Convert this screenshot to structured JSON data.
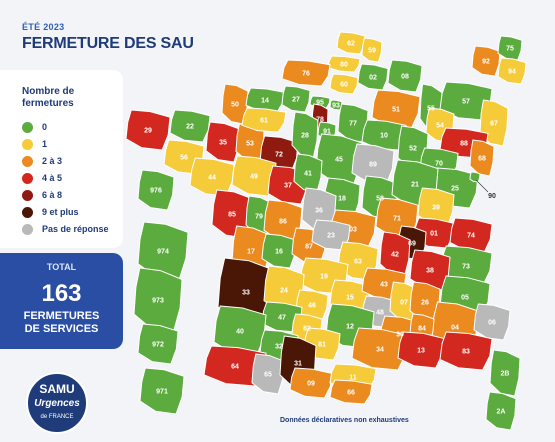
{
  "header": {
    "kicker": "ÉTÉ 2023",
    "title": "FERMETURE DES SAU"
  },
  "legend": {
    "title": "Nombre de fermetures",
    "items": [
      {
        "label": "0",
        "color": "#5cab3e"
      },
      {
        "label": "1",
        "color": "#f5cb3a"
      },
      {
        "label": "2 à 3",
        "color": "#ea8a1f"
      },
      {
        "label": "4 à 5",
        "color": "#d2281f"
      },
      {
        "label": "6 à 8",
        "color": "#8e1a10"
      },
      {
        "label": "9 et plus",
        "color": "#4a1707"
      },
      {
        "label": "Pas de réponse",
        "color": "#b9b9b9"
      }
    ]
  },
  "total": {
    "label": "TOTAL",
    "value": "163",
    "caption_line1": "FERMETURES",
    "caption_line2": "DE SERVICES"
  },
  "note": "Données déclaratives non exhaustives",
  "logo": {
    "top": "SAMU",
    "middle": "Urgences",
    "bottom": "de FRANCE"
  },
  "departments": [
    {
      "code": "62",
      "cat": 1
    },
    {
      "code": "59",
      "cat": 1
    },
    {
      "code": "80",
      "cat": 1
    },
    {
      "code": "02",
      "cat": 0
    },
    {
      "code": "08",
      "cat": 0
    },
    {
      "code": "76",
      "cat": 2
    },
    {
      "code": "60",
      "cat": 1
    },
    {
      "code": "50",
      "cat": 2
    },
    {
      "code": "14",
      "cat": 0
    },
    {
      "code": "27",
      "cat": 0
    },
    {
      "code": "95",
      "cat": 0
    },
    {
      "code": "78",
      "cat": 4
    },
    {
      "code": "93",
      "cat": 0
    },
    {
      "code": "77",
      "cat": 0
    },
    {
      "code": "51",
      "cat": 2
    },
    {
      "code": "55",
      "cat": 0
    },
    {
      "code": "57",
      "cat": 0
    },
    {
      "code": "67",
      "cat": 1
    },
    {
      "code": "54",
      "cat": 1
    },
    {
      "code": "88",
      "cat": 3
    },
    {
      "code": "68",
      "cat": 2
    },
    {
      "code": "29",
      "cat": 3
    },
    {
      "code": "22",
      "cat": 0
    },
    {
      "code": "35",
      "cat": 3
    },
    {
      "code": "53",
      "cat": 2
    },
    {
      "code": "61",
      "cat": 1
    },
    {
      "code": "72",
      "cat": 4
    },
    {
      "code": "28",
      "cat": 0
    },
    {
      "code": "91",
      "cat": 0
    },
    {
      "code": "45",
      "cat": 0
    },
    {
      "code": "10",
      "cat": 0
    },
    {
      "code": "52",
      "cat": 0
    },
    {
      "code": "89",
      "cat": 6
    },
    {
      "code": "70",
      "cat": 0
    },
    {
      "code": "25",
      "cat": 0
    },
    {
      "code": "90",
      "cat": 0
    },
    {
      "code": "56",
      "cat": 1
    },
    {
      "code": "44",
      "cat": 1
    },
    {
      "code": "49",
      "cat": 1
    },
    {
      "code": "37",
      "cat": 3
    },
    {
      "code": "41",
      "cat": 0
    },
    {
      "code": "18",
      "cat": 0
    },
    {
      "code": "58",
      "cat": 0
    },
    {
      "code": "21",
      "cat": 0
    },
    {
      "code": "39",
      "cat": 1
    },
    {
      "code": "85",
      "cat": 3
    },
    {
      "code": "79",
      "cat": 0
    },
    {
      "code": "86",
      "cat": 2
    },
    {
      "code": "36",
      "cat": 6
    },
    {
      "code": "03",
      "cat": 2
    },
    {
      "code": "71",
      "cat": 2
    },
    {
      "code": "01",
      "cat": 3
    },
    {
      "code": "74",
      "cat": 3
    },
    {
      "code": "69",
      "cat": 5
    },
    {
      "code": "17",
      "cat": 2
    },
    {
      "code": "16",
      "cat": 0
    },
    {
      "code": "87",
      "cat": 2
    },
    {
      "code": "23",
      "cat": 6
    },
    {
      "code": "63",
      "cat": 1
    },
    {
      "code": "42",
      "cat": 3
    },
    {
      "code": "73",
      "cat": 0
    },
    {
      "code": "38",
      "cat": 3
    },
    {
      "code": "19",
      "cat": 1
    },
    {
      "code": "15",
      "cat": 1
    },
    {
      "code": "43",
      "cat": 2
    },
    {
      "code": "33",
      "cat": 5
    },
    {
      "code": "24",
      "cat": 1
    },
    {
      "code": "46",
      "cat": 1
    },
    {
      "code": "48",
      "cat": 6
    },
    {
      "code": "07",
      "cat": 1
    },
    {
      "code": "26",
      "cat": 2
    },
    {
      "code": "05",
      "cat": 0
    },
    {
      "code": "47",
      "cat": 0
    },
    {
      "code": "82",
      "cat": 1
    },
    {
      "code": "12",
      "cat": 0
    },
    {
      "code": "04",
      "cat": 2
    },
    {
      "code": "06",
      "cat": 6
    },
    {
      "code": "40",
      "cat": 0
    },
    {
      "code": "32",
      "cat": 0
    },
    {
      "code": "81",
      "cat": 1
    },
    {
      "code": "30",
      "cat": 2
    },
    {
      "code": "84",
      "cat": 2
    },
    {
      "code": "64",
      "cat": 3
    },
    {
      "code": "65",
      "cat": 6
    },
    {
      "code": "31",
      "cat": 5
    },
    {
      "code": "34",
      "cat": 2
    },
    {
      "code": "13",
      "cat": 3
    },
    {
      "code": "83",
      "cat": 3
    },
    {
      "code": "09",
      "cat": 2
    },
    {
      "code": "11",
      "cat": 1
    },
    {
      "code": "66",
      "cat": 2
    },
    {
      "code": "2B",
      "cat": 0
    },
    {
      "code": "2A",
      "cat": 0
    },
    {
      "code": "92",
      "cat": 2
    },
    {
      "code": "75",
      "cat": 0
    },
    {
      "code": "94",
      "cat": 1
    },
    {
      "code": "976",
      "cat": 0
    },
    {
      "code": "974",
      "cat": 0
    },
    {
      "code": "973",
      "cat": 0
    },
    {
      "code": "972",
      "cat": 0
    },
    {
      "code": "971",
      "cat": 0
    }
  ]
}
